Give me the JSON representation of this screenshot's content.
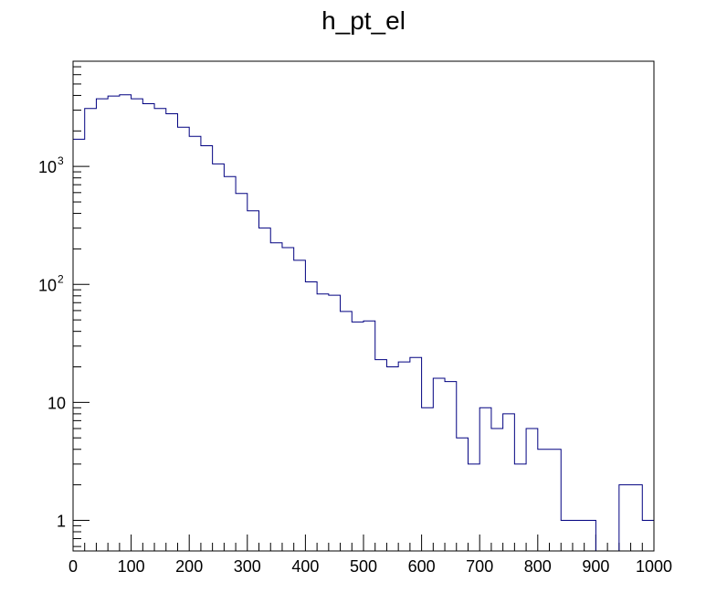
{
  "chart_data": {
    "type": "histogram",
    "title": "h_pt_el",
    "xlabel": "",
    "ylabel": "",
    "xlim": [
      0,
      1000
    ],
    "ylim": [
      0.55,
      7800
    ],
    "y_scale": "log",
    "grid": false,
    "legend": "none",
    "line_color": "#000080",
    "bins": {
      "edges_start": 0,
      "bin_width": 20,
      "counts": [
        1700,
        3100,
        3750,
        3950,
        4050,
        3750,
        3400,
        3100,
        2800,
        2150,
        1800,
        1500,
        1050,
        820,
        590,
        420,
        300,
        225,
        205,
        160,
        105,
        83,
        81,
        59,
        48,
        49,
        23,
        20,
        22,
        24,
        9,
        16,
        15,
        5,
        3,
        9,
        6,
        8,
        3,
        6,
        4,
        4,
        1,
        1,
        1,
        0,
        0,
        2,
        2,
        1
      ]
    },
    "x_ticks": [
      {
        "value": 0,
        "label": "0"
      },
      {
        "value": 100,
        "label": "100"
      },
      {
        "value": 200,
        "label": "200"
      },
      {
        "value": 300,
        "label": "300"
      },
      {
        "value": 400,
        "label": "400"
      },
      {
        "value": 500,
        "label": "500"
      },
      {
        "value": 600,
        "label": "600"
      },
      {
        "value": 700,
        "label": "700"
      },
      {
        "value": 800,
        "label": "800"
      },
      {
        "value": 900,
        "label": "900"
      },
      {
        "value": 1000,
        "label": "1000"
      }
    ],
    "y_ticks": [
      {
        "value": 1,
        "base": "1",
        "exp": ""
      },
      {
        "value": 10,
        "base": "10",
        "exp": ""
      },
      {
        "value": 100,
        "base": "10",
        "exp": "2"
      },
      {
        "value": 1000,
        "base": "10",
        "exp": "3"
      }
    ]
  }
}
